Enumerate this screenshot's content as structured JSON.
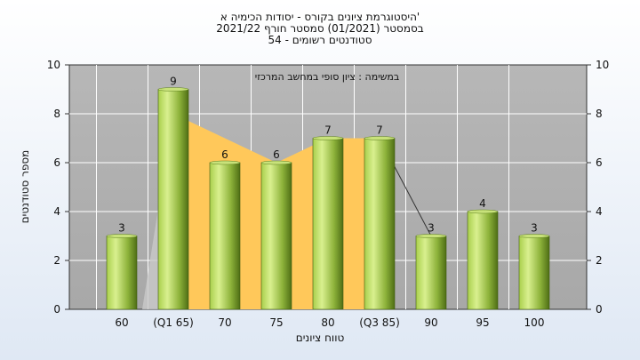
{
  "chart_data": {
    "type": "bar",
    "title_lines": [
      "היסטוגרמת ציונים בקורס - יסודות הכימיה א'",
      "בסמסטר (01/2021) סמסטר חורף 2021/22",
      "סטודנטים רשומים - 54"
    ],
    "annotation": "במשימה : ציון סופי במחשב המרכזי",
    "categories": [
      "60",
      "(Q1 65)",
      "70",
      "75",
      "80",
      "(Q3 85)",
      "90",
      "95",
      "100"
    ],
    "values": [
      3,
      9,
      6,
      6,
      7,
      7,
      3,
      4,
      3
    ],
    "area_overlay": {
      "x": [
        "(Q1 65)",
        "70",
        "75",
        "80",
        "(Q3 85)"
      ],
      "values": [
        8,
        7,
        6,
        7,
        7
      ]
    },
    "xlabel": "טווח ציונים",
    "ylabel": "מספר סטודנטים",
    "ylim": [
      0,
      10
    ],
    "yticks": [
      0,
      2,
      4,
      6,
      8,
      10
    ],
    "grid": true,
    "colors": {
      "plot_bg": "#b3b3b3",
      "bar_light": "#d4ec8e",
      "bar_dark": "#5d7f1e",
      "area": "#ffc85a",
      "grid": "#ffffff"
    }
  }
}
